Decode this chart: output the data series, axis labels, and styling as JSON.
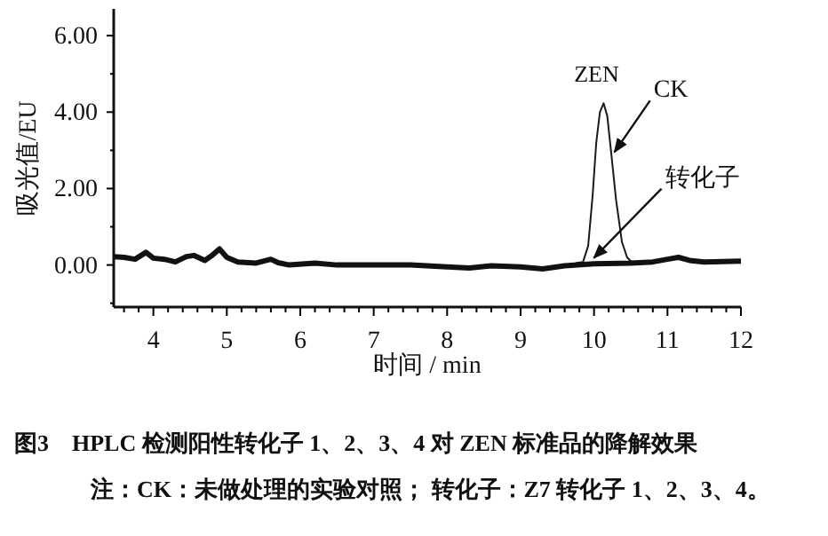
{
  "chart_data": {
    "type": "line",
    "title": "图3　HPLC 检测阳性转化子 1、2、3、4 对 ZEN 标准品的降解效果",
    "xlabel": "时间 / min",
    "ylabel": "吸光值/EU",
    "xlim": [
      3.46,
      12
    ],
    "ylim": [
      -1.1,
      6.7
    ],
    "xticks": [
      {
        "value": 3.6,
        "label": null
      },
      {
        "value": 3.8,
        "label": null
      },
      4,
      {
        "value": 4.2,
        "label": null
      },
      {
        "value": 4.4,
        "label": null
      },
      {
        "value": 4.6,
        "label": null
      },
      {
        "value": 4.8,
        "label": null
      },
      5,
      {
        "value": 5.2,
        "label": null
      },
      {
        "value": 5.4,
        "label": null
      },
      {
        "value": 5.6,
        "label": null
      },
      {
        "value": 5.8,
        "label": null
      },
      6,
      {
        "value": 6.2,
        "label": null
      },
      {
        "value": 6.4,
        "label": null
      },
      {
        "value": 6.6,
        "label": null
      },
      {
        "value": 6.8,
        "label": null
      },
      7,
      {
        "value": 7.2,
        "label": null
      },
      {
        "value": 7.4,
        "label": null
      },
      {
        "value": 7.6,
        "label": null
      },
      {
        "value": 7.8,
        "label": null
      },
      8,
      {
        "value": 8.2,
        "label": null
      },
      {
        "value": 8.4,
        "label": null
      },
      {
        "value": 8.6,
        "label": null
      },
      {
        "value": 8.8,
        "label": null
      },
      9,
      {
        "value": 9.2,
        "label": null
      },
      {
        "value": 9.4,
        "label": null
      },
      {
        "value": 9.6,
        "label": null
      },
      {
        "value": 9.8,
        "label": null
      },
      10,
      {
        "value": 10.2,
        "label": null
      },
      {
        "value": 10.4,
        "label": null
      },
      {
        "value": 10.6,
        "label": null
      },
      {
        "value": 10.8,
        "label": null
      },
      11,
      {
        "value": 11.2,
        "label": null
      },
      {
        "value": 11.4,
        "label": null
      },
      {
        "value": 11.6,
        "label": null
      },
      {
        "value": 11.8,
        "label": null
      },
      12
    ],
    "yticks": [
      {
        "value": -1,
        "label": null
      },
      {
        "value": 0,
        "label": "0.00"
      },
      {
        "value": 1,
        "label": null
      },
      {
        "value": 2,
        "label": "2.00"
      },
      {
        "value": 3,
        "label": null
      },
      {
        "value": 4,
        "label": "4.00"
      },
      {
        "value": 5,
        "label": null
      },
      {
        "value": 6,
        "label": "6.00"
      }
    ],
    "series": [
      {
        "name": "CK",
        "color": "#1a1a1a",
        "x": [
          9.75,
          9.85,
          9.92,
          9.98,
          10.03,
          10.08,
          10.13,
          10.18,
          10.23,
          10.3,
          10.38,
          10.45,
          10.52,
          10.6
        ],
        "values": [
          0.05,
          0.08,
          0.5,
          1.8,
          3.2,
          4.0,
          4.23,
          3.9,
          3.0,
          1.7,
          0.6,
          0.2,
          0.06,
          0.05
        ]
      },
      {
        "name": "转化子",
        "color": "#111111",
        "x": [
          3.46,
          3.6,
          3.75,
          3.9,
          4.0,
          4.15,
          4.3,
          4.45,
          4.55,
          4.7,
          4.8,
          4.9,
          5.0,
          5.15,
          5.4,
          5.6,
          5.7,
          5.85,
          6.2,
          6.5,
          7.0,
          7.5,
          8.0,
          8.3,
          8.6,
          9.0,
          9.3,
          9.6,
          10.0,
          10.5,
          10.8,
          11.0,
          11.15,
          11.3,
          11.5,
          12.0
        ],
        "values": [
          0.22,
          0.2,
          0.15,
          0.33,
          0.18,
          0.15,
          0.08,
          0.22,
          0.25,
          0.12,
          0.25,
          0.42,
          0.2,
          0.08,
          0.05,
          0.15,
          0.06,
          0.0,
          0.05,
          0.0,
          0.0,
          0.0,
          -0.05,
          -0.08,
          -0.02,
          -0.05,
          -0.1,
          -0.02,
          0.03,
          0.05,
          0.08,
          0.15,
          0.2,
          0.12,
          0.08,
          0.1
        ]
      }
    ],
    "annotations": [
      {
        "text": "ZEN",
        "x": 10.13,
        "y": 4.23
      },
      "注：CK：未做处理的实验对照； 转化子：Z7 转化子 1、2、3、4。"
    ],
    "line_style": "solid",
    "grid": false
  }
}
